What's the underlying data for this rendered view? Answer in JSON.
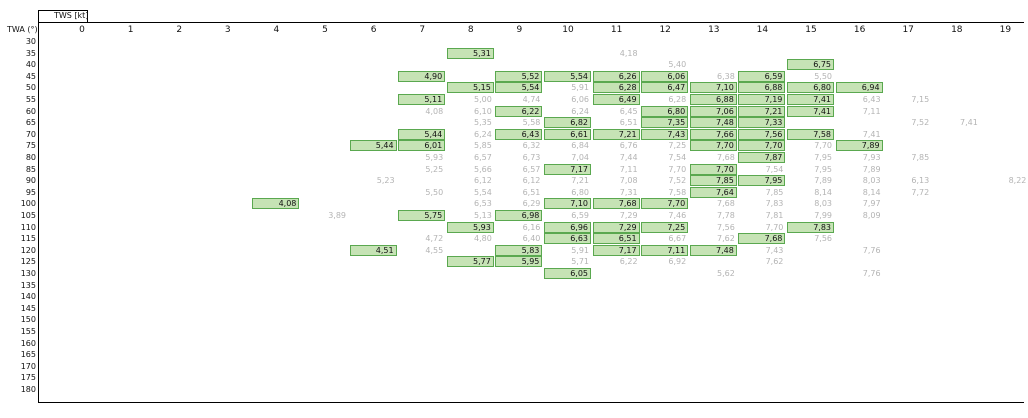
{
  "header": {
    "tws_label": "TWS [kt]",
    "twa_label": "TWA (°)"
  },
  "colors": {
    "highlight_fill": "#c6e3b5",
    "highlight_border": "#5aa84f",
    "faint_text": "#b4b4b4"
  },
  "tws_values": [
    "0",
    "1",
    "2",
    "3",
    "4",
    "5",
    "6",
    "7",
    "8",
    "9",
    "10",
    "11",
    "12",
    "13",
    "14",
    "15",
    "16",
    "17",
    "18",
    "19"
  ],
  "twa_values": [
    "30",
    "35",
    "40",
    "45",
    "50",
    "55",
    "60",
    "65",
    "70",
    "75",
    "80",
    "85",
    "90",
    "95",
    "100",
    "105",
    "110",
    "115",
    "120",
    "125",
    "130",
    "135",
    "140",
    "145",
    "150",
    "155",
    "160",
    "165",
    "170",
    "175",
    "180"
  ],
  "cells": [
    {
      "twa": "35",
      "tws": "8",
      "v": "5,31",
      "h": true
    },
    {
      "twa": "35",
      "tws": "11",
      "v": "4,18",
      "h": false
    },
    {
      "twa": "40",
      "tws": "12",
      "v": "5,40",
      "h": false
    },
    {
      "twa": "40",
      "tws": "15",
      "v": "6,75",
      "h": true
    },
    {
      "twa": "45",
      "tws": "7",
      "v": "4,90",
      "h": true
    },
    {
      "twa": "45",
      "tws": "9",
      "v": "5,52",
      "h": true
    },
    {
      "twa": "45",
      "tws": "10",
      "v": "5,54",
      "h": true
    },
    {
      "twa": "45",
      "tws": "11",
      "v": "6,26",
      "h": true
    },
    {
      "twa": "45",
      "tws": "12",
      "v": "6,06",
      "h": true
    },
    {
      "twa": "45",
      "tws": "13",
      "v": "6,38",
      "h": false
    },
    {
      "twa": "45",
      "tws": "14",
      "v": "6,59",
      "h": true
    },
    {
      "twa": "45",
      "tws": "15",
      "v": "5,50",
      "h": false
    },
    {
      "twa": "50",
      "tws": "8",
      "v": "5,15",
      "h": true
    },
    {
      "twa": "50",
      "tws": "9",
      "v": "5,54",
      "h": true
    },
    {
      "twa": "50",
      "tws": "10",
      "v": "5,91",
      "h": false
    },
    {
      "twa": "50",
      "tws": "11",
      "v": "6,28",
      "h": true
    },
    {
      "twa": "50",
      "tws": "12",
      "v": "6,47",
      "h": true
    },
    {
      "twa": "50",
      "tws": "13",
      "v": "7,10",
      "h": true
    },
    {
      "twa": "50",
      "tws": "14",
      "v": "6,88",
      "h": true
    },
    {
      "twa": "50",
      "tws": "15",
      "v": "6,80",
      "h": true
    },
    {
      "twa": "50",
      "tws": "16",
      "v": "6,94",
      "h": true
    },
    {
      "twa": "55",
      "tws": "7",
      "v": "5,11",
      "h": true
    },
    {
      "twa": "55",
      "tws": "8",
      "v": "5,00",
      "h": false
    },
    {
      "twa": "55",
      "tws": "9",
      "v": "4,74",
      "h": false
    },
    {
      "twa": "55",
      "tws": "10",
      "v": "6,06",
      "h": false
    },
    {
      "twa": "55",
      "tws": "11",
      "v": "6,49",
      "h": true
    },
    {
      "twa": "55",
      "tws": "12",
      "v": "6,28",
      "h": false
    },
    {
      "twa": "55",
      "tws": "13",
      "v": "6,88",
      "h": true
    },
    {
      "twa": "55",
      "tws": "14",
      "v": "7,19",
      "h": true
    },
    {
      "twa": "55",
      "tws": "15",
      "v": "7,41",
      "h": true
    },
    {
      "twa": "55",
      "tws": "16",
      "v": "6,43",
      "h": false
    },
    {
      "twa": "55",
      "tws": "17",
      "v": "7,15",
      "h": false
    },
    {
      "twa": "60",
      "tws": "7",
      "v": "4,08",
      "h": false
    },
    {
      "twa": "60",
      "tws": "8",
      "v": "6,10",
      "h": false
    },
    {
      "twa": "60",
      "tws": "9",
      "v": "6,22",
      "h": true
    },
    {
      "twa": "60",
      "tws": "10",
      "v": "6,24",
      "h": false
    },
    {
      "twa": "60",
      "tws": "11",
      "v": "6,45",
      "h": false
    },
    {
      "twa": "60",
      "tws": "12",
      "v": "6,80",
      "h": true
    },
    {
      "twa": "60",
      "tws": "13",
      "v": "7,06",
      "h": true
    },
    {
      "twa": "60",
      "tws": "14",
      "v": "7,21",
      "h": true
    },
    {
      "twa": "60",
      "tws": "15",
      "v": "7,41",
      "h": true
    },
    {
      "twa": "60",
      "tws": "16",
      "v": "7,11",
      "h": false
    },
    {
      "twa": "65",
      "tws": "8",
      "v": "5,35",
      "h": false
    },
    {
      "twa": "65",
      "tws": "9",
      "v": "5,58",
      "h": false
    },
    {
      "twa": "65",
      "tws": "10",
      "v": "6,82",
      "h": true
    },
    {
      "twa": "65",
      "tws": "11",
      "v": "6,51",
      "h": false
    },
    {
      "twa": "65",
      "tws": "12",
      "v": "7,35",
      "h": true
    },
    {
      "twa": "65",
      "tws": "13",
      "v": "7,48",
      "h": true
    },
    {
      "twa": "65",
      "tws": "14",
      "v": "7,33",
      "h": true
    },
    {
      "twa": "65",
      "tws": "17",
      "v": "7,52",
      "h": false
    },
    {
      "twa": "65",
      "tws": "18",
      "v": "7,41",
      "h": false
    },
    {
      "twa": "70",
      "tws": "7",
      "v": "5,44",
      "h": true
    },
    {
      "twa": "70",
      "tws": "8",
      "v": "6,24",
      "h": false
    },
    {
      "twa": "70",
      "tws": "9",
      "v": "6,43",
      "h": true
    },
    {
      "twa": "70",
      "tws": "10",
      "v": "6,61",
      "h": true
    },
    {
      "twa": "70",
      "tws": "11",
      "v": "7,21",
      "h": true
    },
    {
      "twa": "70",
      "tws": "12",
      "v": "7,43",
      "h": true
    },
    {
      "twa": "70",
      "tws": "13",
      "v": "7,66",
      "h": true
    },
    {
      "twa": "70",
      "tws": "14",
      "v": "7,56",
      "h": true
    },
    {
      "twa": "70",
      "tws": "15",
      "v": "7,58",
      "h": true
    },
    {
      "twa": "70",
      "tws": "16",
      "v": "7,41",
      "h": false
    },
    {
      "twa": "75",
      "tws": "6",
      "v": "5,44",
      "h": true
    },
    {
      "twa": "75",
      "tws": "7",
      "v": "6,01",
      "h": true
    },
    {
      "twa": "75",
      "tws": "8",
      "v": "5,85",
      "h": false
    },
    {
      "twa": "75",
      "tws": "9",
      "v": "6,32",
      "h": false
    },
    {
      "twa": "75",
      "tws": "10",
      "v": "6,84",
      "h": false
    },
    {
      "twa": "75",
      "tws": "11",
      "v": "6,76",
      "h": false
    },
    {
      "twa": "75",
      "tws": "12",
      "v": "7,25",
      "h": false
    },
    {
      "twa": "75",
      "tws": "13",
      "v": "7,70",
      "h": true
    },
    {
      "twa": "75",
      "tws": "14",
      "v": "7,70",
      "h": true
    },
    {
      "twa": "75",
      "tws": "15",
      "v": "7,70",
      "h": false
    },
    {
      "twa": "75",
      "tws": "16",
      "v": "7,89",
      "h": true
    },
    {
      "twa": "80",
      "tws": "7",
      "v": "5,93",
      "h": false
    },
    {
      "twa": "80",
      "tws": "8",
      "v": "6,57",
      "h": false
    },
    {
      "twa": "80",
      "tws": "9",
      "v": "6,73",
      "h": false
    },
    {
      "twa": "80",
      "tws": "10",
      "v": "7,04",
      "h": false
    },
    {
      "twa": "80",
      "tws": "11",
      "v": "7,44",
      "h": false
    },
    {
      "twa": "80",
      "tws": "12",
      "v": "7,54",
      "h": false
    },
    {
      "twa": "80",
      "tws": "13",
      "v": "7,68",
      "h": false
    },
    {
      "twa": "80",
      "tws": "14",
      "v": "7,87",
      "h": true
    },
    {
      "twa": "80",
      "tws": "15",
      "v": "7,95",
      "h": false
    },
    {
      "twa": "80",
      "tws": "16",
      "v": "7,93",
      "h": false
    },
    {
      "twa": "80",
      "tws": "17",
      "v": "7,85",
      "h": false
    },
    {
      "twa": "85",
      "tws": "7",
      "v": "5,25",
      "h": false
    },
    {
      "twa": "85",
      "tws": "8",
      "v": "5,66",
      "h": false
    },
    {
      "twa": "85",
      "tws": "9",
      "v": "6,57",
      "h": false
    },
    {
      "twa": "85",
      "tws": "10",
      "v": "7,17",
      "h": true
    },
    {
      "twa": "85",
      "tws": "11",
      "v": "7,11",
      "h": false
    },
    {
      "twa": "85",
      "tws": "12",
      "v": "7,70",
      "h": false
    },
    {
      "twa": "85",
      "tws": "13",
      "v": "7,70",
      "h": true
    },
    {
      "twa": "85",
      "tws": "14",
      "v": "7,54",
      "h": false
    },
    {
      "twa": "85",
      "tws": "15",
      "v": "7,95",
      "h": false
    },
    {
      "twa": "85",
      "tws": "16",
      "v": "7,89",
      "h": false
    },
    {
      "twa": "90",
      "tws": "6",
      "v": "5,23",
      "h": false
    },
    {
      "twa": "90",
      "tws": "8",
      "v": "6,12",
      "h": false
    },
    {
      "twa": "90",
      "tws": "9",
      "v": "6,12",
      "h": false
    },
    {
      "twa": "90",
      "tws": "10",
      "v": "7,21",
      "h": false
    },
    {
      "twa": "90",
      "tws": "11",
      "v": "7,08",
      "h": false
    },
    {
      "twa": "90",
      "tws": "12",
      "v": "7,52",
      "h": false
    },
    {
      "twa": "90",
      "tws": "13",
      "v": "7,85",
      "h": true
    },
    {
      "twa": "90",
      "tws": "14",
      "v": "7,95",
      "h": true
    },
    {
      "twa": "90",
      "tws": "15",
      "v": "7,89",
      "h": false
    },
    {
      "twa": "90",
      "tws": "16",
      "v": "8,03",
      "h": false
    },
    {
      "twa": "90",
      "tws": "17",
      "v": "6,13",
      "h": false
    },
    {
      "twa": "90",
      "tws": "19",
      "v": "8,22",
      "h": false
    },
    {
      "twa": "95",
      "tws": "7",
      "v": "5,50",
      "h": false
    },
    {
      "twa": "95",
      "tws": "8",
      "v": "5,54",
      "h": false
    },
    {
      "twa": "95",
      "tws": "9",
      "v": "6,51",
      "h": false
    },
    {
      "twa": "95",
      "tws": "10",
      "v": "6,80",
      "h": false
    },
    {
      "twa": "95",
      "tws": "11",
      "v": "7,31",
      "h": false
    },
    {
      "twa": "95",
      "tws": "12",
      "v": "7,58",
      "h": false
    },
    {
      "twa": "95",
      "tws": "13",
      "v": "7,64",
      "h": true
    },
    {
      "twa": "95",
      "tws": "14",
      "v": "7,85",
      "h": false
    },
    {
      "twa": "95",
      "tws": "15",
      "v": "8,14",
      "h": false
    },
    {
      "twa": "95",
      "tws": "16",
      "v": "8,14",
      "h": false
    },
    {
      "twa": "95",
      "tws": "17",
      "v": "7,72",
      "h": false
    },
    {
      "twa": "100",
      "tws": "4",
      "v": "4,08",
      "h": true
    },
    {
      "twa": "100",
      "tws": "8",
      "v": "6,53",
      "h": false
    },
    {
      "twa": "100",
      "tws": "9",
      "v": "6,29",
      "h": false
    },
    {
      "twa": "100",
      "tws": "10",
      "v": "7,10",
      "h": true
    },
    {
      "twa": "100",
      "tws": "11",
      "v": "7,68",
      "h": true
    },
    {
      "twa": "100",
      "tws": "12",
      "v": "7,70",
      "h": true
    },
    {
      "twa": "100",
      "tws": "13",
      "v": "7,68",
      "h": false
    },
    {
      "twa": "100",
      "tws": "14",
      "v": "7,83",
      "h": false
    },
    {
      "twa": "100",
      "tws": "15",
      "v": "8,03",
      "h": false
    },
    {
      "twa": "100",
      "tws": "16",
      "v": "7,97",
      "h": false
    },
    {
      "twa": "105",
      "tws": "5",
      "v": "3,89",
      "h": false
    },
    {
      "twa": "105",
      "tws": "7",
      "v": "5,75",
      "h": true
    },
    {
      "twa": "105",
      "tws": "8",
      "v": "5,13",
      "h": false
    },
    {
      "twa": "105",
      "tws": "9",
      "v": "6,98",
      "h": true
    },
    {
      "twa": "105",
      "tws": "10",
      "v": "6,59",
      "h": false
    },
    {
      "twa": "105",
      "tws": "11",
      "v": "7,29",
      "h": false
    },
    {
      "twa": "105",
      "tws": "12",
      "v": "7,46",
      "h": false
    },
    {
      "twa": "105",
      "tws": "13",
      "v": "7,78",
      "h": false
    },
    {
      "twa": "105",
      "tws": "14",
      "v": "7,81",
      "h": false
    },
    {
      "twa": "105",
      "tws": "15",
      "v": "7,99",
      "h": false
    },
    {
      "twa": "105",
      "tws": "16",
      "v": "8,09",
      "h": false
    },
    {
      "twa": "110",
      "tws": "8",
      "v": "5,93",
      "h": true
    },
    {
      "twa": "110",
      "tws": "9",
      "v": "6,16",
      "h": false
    },
    {
      "twa": "110",
      "tws": "10",
      "v": "6,96",
      "h": true
    },
    {
      "twa": "110",
      "tws": "11",
      "v": "7,29",
      "h": true
    },
    {
      "twa": "110",
      "tws": "12",
      "v": "7,25",
      "h": true
    },
    {
      "twa": "110",
      "tws": "13",
      "v": "7,56",
      "h": false
    },
    {
      "twa": "110",
      "tws": "14",
      "v": "7,70",
      "h": false
    },
    {
      "twa": "110",
      "tws": "15",
      "v": "7,83",
      "h": true
    },
    {
      "twa": "115",
      "tws": "7",
      "v": "4,72",
      "h": false
    },
    {
      "twa": "115",
      "tws": "8",
      "v": "4,80",
      "h": false
    },
    {
      "twa": "115",
      "tws": "9",
      "v": "6,40",
      "h": false
    },
    {
      "twa": "115",
      "tws": "10",
      "v": "6,63",
      "h": true
    },
    {
      "twa": "115",
      "tws": "11",
      "v": "6,51",
      "h": true
    },
    {
      "twa": "115",
      "tws": "12",
      "v": "6,67",
      "h": false
    },
    {
      "twa": "115",
      "tws": "13",
      "v": "7,62",
      "h": false
    },
    {
      "twa": "115",
      "tws": "14",
      "v": "7,68",
      "h": true
    },
    {
      "twa": "115",
      "tws": "15",
      "v": "7,56",
      "h": false
    },
    {
      "twa": "120",
      "tws": "6",
      "v": "4,51",
      "h": true
    },
    {
      "twa": "120",
      "tws": "7",
      "v": "4,55",
      "h": false
    },
    {
      "twa": "120",
      "tws": "9",
      "v": "5,83",
      "h": true
    },
    {
      "twa": "120",
      "tws": "10",
      "v": "5,91",
      "h": false
    },
    {
      "twa": "120",
      "tws": "11",
      "v": "7,17",
      "h": true
    },
    {
      "twa": "120",
      "tws": "12",
      "v": "7,11",
      "h": true
    },
    {
      "twa": "120",
      "tws": "13",
      "v": "7,48",
      "h": true
    },
    {
      "twa": "120",
      "tws": "14",
      "v": "7,43",
      "h": false
    },
    {
      "twa": "120",
      "tws": "16",
      "v": "7,76",
      "h": false
    },
    {
      "twa": "125",
      "tws": "8",
      "v": "5,77",
      "h": true
    },
    {
      "twa": "125",
      "tws": "9",
      "v": "5,95",
      "h": true
    },
    {
      "twa": "125",
      "tws": "10",
      "v": "5,71",
      "h": false
    },
    {
      "twa": "125",
      "tws": "11",
      "v": "6,22",
      "h": false
    },
    {
      "twa": "125",
      "tws": "12",
      "v": "6,92",
      "h": false
    },
    {
      "twa": "125",
      "tws": "14",
      "v": "7,62",
      "h": false
    },
    {
      "twa": "130",
      "tws": "10",
      "v": "6,05",
      "h": true
    },
    {
      "twa": "130",
      "tws": "13",
      "v": "5,62",
      "h": false
    },
    {
      "twa": "130",
      "tws": "16",
      "v": "7,76",
      "h": false
    }
  ]
}
